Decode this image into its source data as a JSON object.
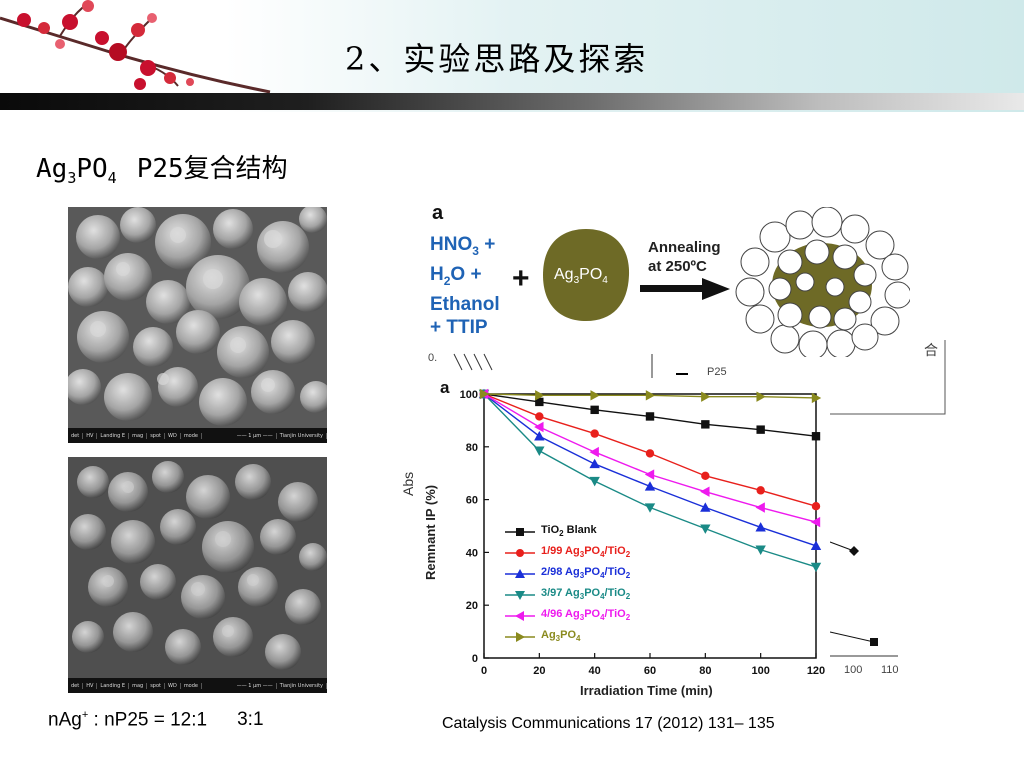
{
  "header": {
    "title": "2、实验思路及探索"
  },
  "subtitle": {
    "compound": "Ag",
    "sub1": "3",
    "mid": "PO",
    "sub2": "4",
    "partner": "P25复合结构"
  },
  "sem_images": {
    "top": {
      "info": [
        "det",
        "HV",
        "Landing E",
        "mag",
        "spot",
        "WD",
        "mode",
        "—— 1 μm ——",
        "Tianjin University"
      ]
    },
    "bottom": {
      "info": [
        "det",
        "HV",
        "Landing E",
        "mag",
        "spot",
        "WD",
        "mode",
        "—— 1 μm ——",
        "Tianjin University"
      ]
    }
  },
  "ratio": {
    "left": "nAg",
    "sup": "+",
    "right": " : nP25 = 12:1",
    "second": "3:1"
  },
  "scheme": {
    "panel_label": "a",
    "reagents": [
      "HNO",
      "3",
      " +",
      "H",
      "2",
      "O +",
      "Ethanol",
      "+ TTIP"
    ],
    "plus": "+",
    "ag_label_main": "Ag",
    "ag_sub1": "3",
    "ag_mid": "PO",
    "ag_sub2": "4",
    "anneal_line1": "Annealing",
    "anneal_line2": "at 250ºC"
  },
  "background_chart": {
    "ylabel": "Abs",
    "ticks_y": [
      "0.",
      "0.",
      "0.",
      "0.",
      "0.",
      "0.",
      "0.",
      "0.",
      "0."
    ],
    "ticks_x": [
      "100",
      "110"
    ],
    "legend_fragment": "P25",
    "side_text": "合"
  },
  "chart_data": {
    "type": "line",
    "panel_label": "a",
    "xlabel": "Irradiation Time (min)",
    "ylabel": "Remnant IP (%)",
    "xlim": [
      0,
      120
    ],
    "ylim": [
      0,
      100
    ],
    "x_ticks": [
      0,
      20,
      40,
      60,
      80,
      100,
      120
    ],
    "y_ticks": [
      0,
      20,
      40,
      60,
      80,
      100
    ],
    "x": [
      0,
      20,
      40,
      60,
      80,
      100,
      120
    ],
    "series": [
      {
        "name": "TiO2 Blank",
        "label_parts": [
          "TiO",
          "2",
          " Blank"
        ],
        "color": "#111111",
        "marker": "square",
        "values": [
          100,
          97,
          94,
          91.5,
          88.5,
          86.5,
          84
        ]
      },
      {
        "name": "1/99 Ag3PO4/TiO2",
        "label_parts": [
          "1/99 Ag",
          "3",
          "PO",
          "4",
          "/TiO",
          "2"
        ],
        "color": "#e8201c",
        "marker": "circle",
        "values": [
          100,
          91.5,
          85,
          77.5,
          69,
          63.5,
          57.5
        ]
      },
      {
        "name": "2/98 Ag3PO4/TiO2",
        "label_parts": [
          "2/98 Ag",
          "3",
          "PO",
          "4",
          "/TiO",
          "2"
        ],
        "color": "#1a2fd8",
        "marker": "triangle-up",
        "values": [
          100,
          84,
          73.5,
          65,
          57,
          49.5,
          42.5
        ]
      },
      {
        "name": "3/97 Ag3PO4/TiO2",
        "label_parts": [
          "3/97 Ag",
          "3",
          "PO",
          "4",
          "/TiO",
          "2"
        ],
        "color": "#1a8a86",
        "marker": "triangle-down",
        "values": [
          100,
          78.5,
          67,
          57,
          49,
          41,
          34.5
        ]
      },
      {
        "name": "4/96 Ag3PO4/TiO2",
        "label_parts": [
          "4/96 Ag",
          "3",
          "PO",
          "4",
          "/TiO",
          "2"
        ],
        "color": "#ee1aee",
        "marker": "triangle-left",
        "values": [
          100,
          87.5,
          78,
          69.5,
          63,
          57,
          51.5
        ]
      },
      {
        "name": "Ag3PO4",
        "label_parts": [
          "Ag",
          "3",
          "PO",
          "4",
          "",
          ""
        ],
        "color": "#8a8a1e",
        "marker": "triangle-right",
        "values": [
          100,
          99.5,
          99.5,
          99.5,
          99,
          99,
          98.5
        ]
      }
    ]
  },
  "citation": "Catalysis Communications 17 (2012) 131– 135"
}
